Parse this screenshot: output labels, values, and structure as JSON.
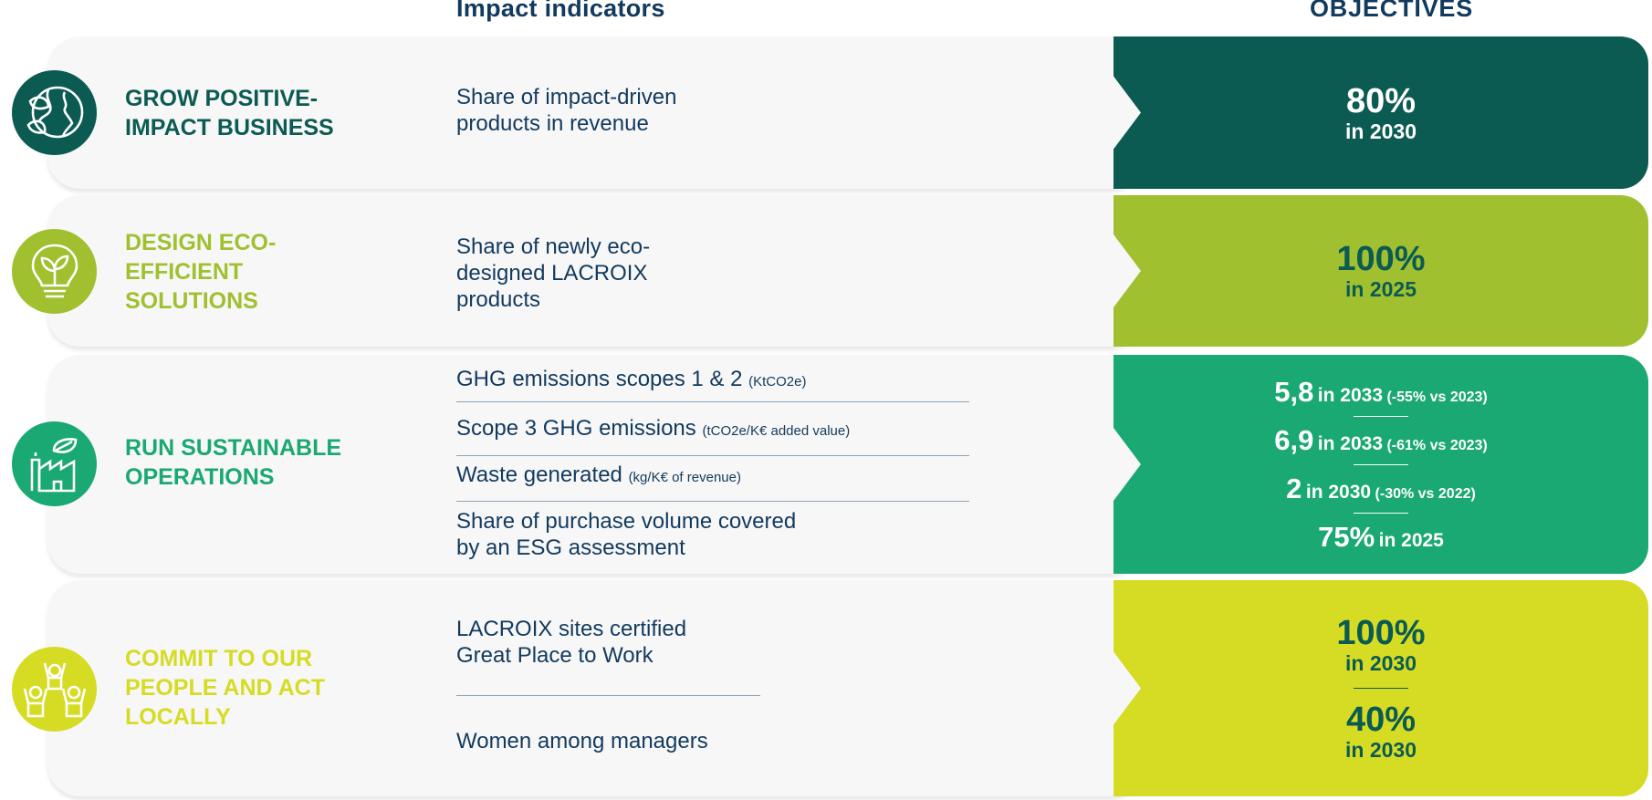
{
  "headers": {
    "impact": "Impact indicators",
    "objectives": "OBJECTIVES"
  },
  "colors": {
    "dark_green": "#0b5b52",
    "lime": "#a0c030",
    "teal": "#1aa873",
    "yellow": "#d6dc24",
    "navy": "#123a5e"
  },
  "rows": [
    {
      "title": [
        "GROW POSITIVE-",
        "IMPACT BUSINESS"
      ],
      "icon": "globe-leaf-icon",
      "indicators": [
        {
          "text": [
            "Share of impact-driven",
            "products in revenue"
          ]
        }
      ],
      "objectives": [
        {
          "value": "80%",
          "year": "in 2030"
        }
      ]
    },
    {
      "title": [
        "DESIGN ECO-",
        "EFFICIENT",
        "SOLUTIONS"
      ],
      "icon": "lightbulb-leaf-icon",
      "indicators": [
        {
          "text": [
            "Share of newly eco-",
            "designed LACROIX",
            "products"
          ]
        }
      ],
      "objectives": [
        {
          "value": "100%",
          "year": "in 2025"
        }
      ]
    },
    {
      "title": [
        "RUN SUSTAINABLE",
        "OPERATIONS"
      ],
      "icon": "factory-leaf-icon",
      "indicators": [
        {
          "text": "GHG emissions scopes 1 & 2",
          "unit": "(KtCO2e)"
        },
        {
          "text": "Scope 3 GHG emissions",
          "unit": "(tCO2e/K€ added value)"
        },
        {
          "text": "Waste generated",
          "unit": "(kg/K€ of revenue)"
        },
        {
          "text": [
            "Share of purchase volume covered",
            "by an ESG assessment"
          ]
        }
      ],
      "objectives": [
        {
          "value": "5,8",
          "year": "in 2033",
          "note": "(-55% vs 2023)"
        },
        {
          "value": "6,9",
          "year": "in 2033",
          "note": "(-61% vs 2023)"
        },
        {
          "value": "2",
          "year": "in 2030",
          "note": "(-30% vs 2022)"
        },
        {
          "value": "75%",
          "year": "in 2025"
        }
      ]
    },
    {
      "title": [
        "COMMIT TO OUR",
        "PEOPLE AND ACT",
        "LOCALLY"
      ],
      "icon": "people-group-icon",
      "indicators": [
        {
          "text": [
            "LACROIX sites certified",
            "Great Place to Work"
          ]
        },
        {
          "text": "Women among managers"
        }
      ],
      "objectives": [
        {
          "value": "100%",
          "year": "in 2030"
        },
        {
          "value": "40%",
          "year": "in 2030"
        }
      ]
    }
  ]
}
